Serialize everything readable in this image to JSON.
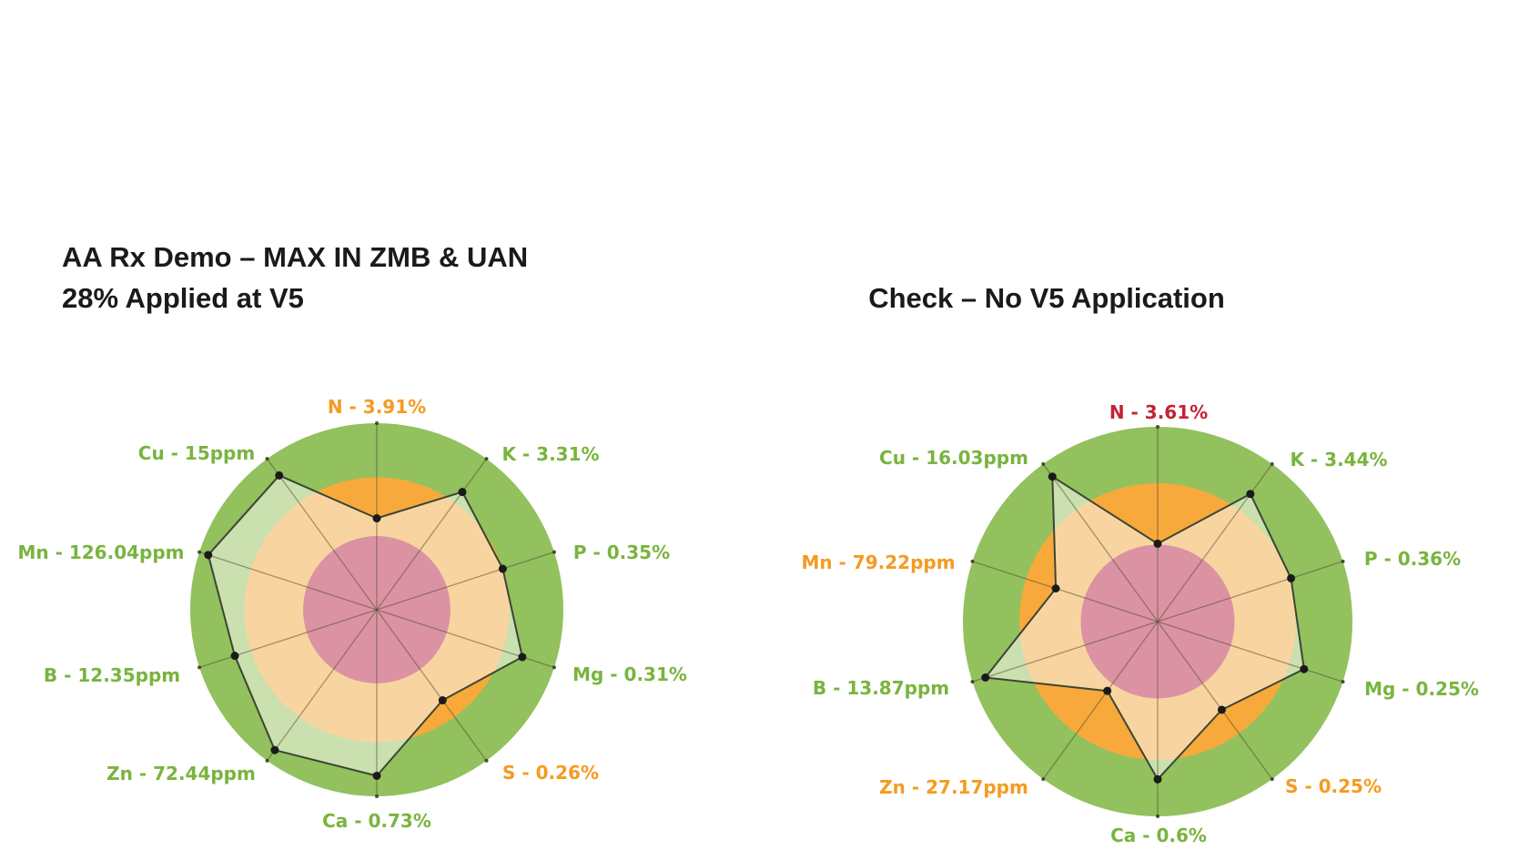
{
  "page": {
    "background": "#ffffff"
  },
  "colors": {
    "sufficient_zone": "#92c15e",
    "caution_zone": "#f8a93c",
    "deficient_zone": "#db93a3",
    "polygon_fill": "rgba(248,250,242,0.55)",
    "polygon_stroke": "#3d4536",
    "vertex_dot": "#1a1a1a",
    "spoke": "rgba(80,72,48,0.5)",
    "spoke_tip": "rgba(55,50,30,0.85)",
    "label_good": "#79b43e",
    "label_caution": "#f59b20",
    "label_deficient": "#c52233",
    "title_color": "#1a1a1a"
  },
  "chart_data": [
    {
      "type": "radar",
      "title": "AA Rx Demo – MAX IN ZMB & UAN 28% Applied at V5",
      "title_lines": [
        "AA Rx Demo – MAX IN ZMB & UAN",
        "28% Applied at V5"
      ],
      "layout_hint": "10-axis radar; concentric status zones: pink center = deficient, orange ring = caution, green outer ring = sufficient; translucent sample polygon with black vertex dots",
      "axes": [
        {
          "label": "N - 3.91%",
          "nutrient": "N",
          "value": "3.91%",
          "status": "caution",
          "radius_frac": 0.49
        },
        {
          "label": "K - 3.31%",
          "nutrient": "K",
          "value": "3.31%",
          "status": "good",
          "radius_frac": 0.78
        },
        {
          "label": "P - 0.35%",
          "nutrient": "P",
          "value": "0.35%",
          "status": "good",
          "radius_frac": 0.71
        },
        {
          "label": "Mg - 0.31%",
          "nutrient": "Mg",
          "value": "0.31%",
          "status": "good",
          "radius_frac": 0.82
        },
        {
          "label": "S - 0.26%",
          "nutrient": "S",
          "value": "0.26%",
          "status": "caution",
          "radius_frac": 0.6
        },
        {
          "label": "Ca - 0.73%",
          "nutrient": "Ca",
          "value": "0.73%",
          "status": "good",
          "radius_frac": 0.89
        },
        {
          "label": "Zn - 72.44ppm",
          "nutrient": "Zn",
          "value": "72.44ppm",
          "status": "good",
          "radius_frac": 0.93
        },
        {
          "label": "B - 12.35ppm",
          "nutrient": "B",
          "value": "12.35ppm",
          "status": "good",
          "radius_frac": 0.8
        },
        {
          "label": "Mn - 126.04ppm",
          "nutrient": "Mn",
          "value": "126.04ppm",
          "status": "good",
          "radius_frac": 0.95
        },
        {
          "label": "Cu - 15ppm",
          "nutrient": "Cu",
          "value": "15ppm",
          "status": "good",
          "radius_frac": 0.89
        }
      ],
      "zones": {
        "deficient_frac": 0.395,
        "caution_frac": 0.71,
        "sufficient_frac": 1.0
      }
    },
    {
      "type": "radar",
      "title": "Check – No V5 Application",
      "title_lines": [
        "Check – No V5 Application"
      ],
      "layout_hint": "10-axis radar; concentric status zones: pink center = deficient, orange ring = caution, green outer ring = sufficient; translucent sample polygon with black vertex dots",
      "axes": [
        {
          "label": "N - 3.61%",
          "nutrient": "N",
          "value": "3.61%",
          "status": "deficient",
          "radius_frac": 0.4
        },
        {
          "label": "K - 3.44%",
          "nutrient": "K",
          "value": "3.44%",
          "status": "good",
          "radius_frac": 0.81
        },
        {
          "label": "P - 0.36%",
          "nutrient": "P",
          "value": "0.36%",
          "status": "good",
          "radius_frac": 0.72
        },
        {
          "label": "Mg - 0.25%",
          "nutrient": "Mg",
          "value": "0.25%",
          "status": "good",
          "radius_frac": 0.79
        },
        {
          "label": "S - 0.25%",
          "nutrient": "S",
          "value": "0.25%",
          "status": "caution",
          "radius_frac": 0.56
        },
        {
          "label": "Ca - 0.6%",
          "nutrient": "Ca",
          "value": "0.6%",
          "status": "good",
          "radius_frac": 0.81
        },
        {
          "label": "Zn - 27.17ppm",
          "nutrient": "Zn",
          "value": "27.17ppm",
          "status": "caution",
          "radius_frac": 0.44
        },
        {
          "label": "B - 13.87ppm",
          "nutrient": "B",
          "value": "13.87ppm",
          "status": "good",
          "radius_frac": 0.93
        },
        {
          "label": "Mn - 79.22ppm",
          "nutrient": "Mn",
          "value": "79.22ppm",
          "status": "caution",
          "radius_frac": 0.55
        },
        {
          "label": "Cu - 16.03ppm",
          "nutrient": "Cu",
          "value": "16.03ppm",
          "status": "good",
          "radius_frac": 0.92
        }
      ],
      "zones": {
        "deficient_frac": 0.395,
        "caution_frac": 0.71,
        "sufficient_frac": 1.0
      }
    }
  ]
}
